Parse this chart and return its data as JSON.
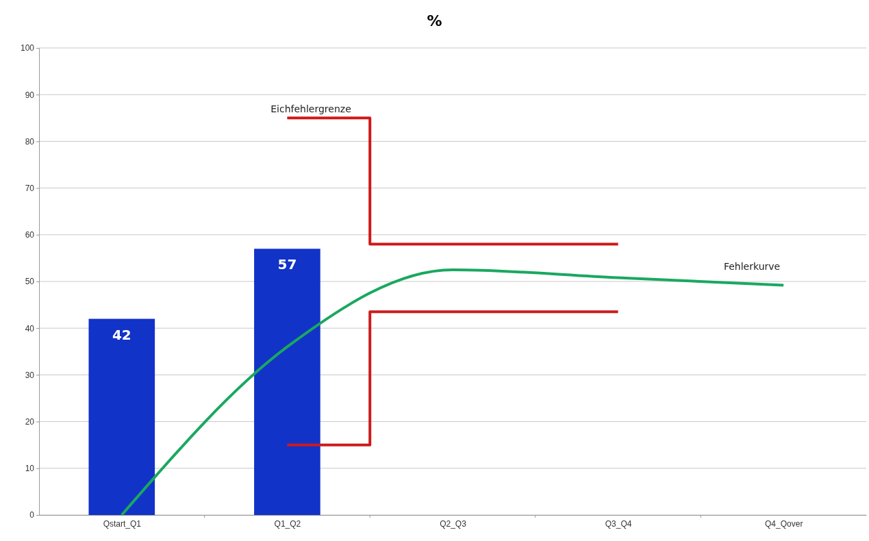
{
  "chart_data": {
    "type": "bar",
    "title": "%",
    "categories": [
      "Qstart_Q1",
      "Q1_Q2",
      "Q2_Q3",
      "Q3_Q4",
      "Q4_Qover"
    ],
    "ylim": [
      0,
      100
    ],
    "yticks": [
      0,
      10,
      20,
      30,
      40,
      50,
      60,
      70,
      80,
      90,
      100
    ],
    "grid": "y",
    "series": [
      {
        "values": [
          42,
          57,
          null,
          null,
          null
        ],
        "value_labels": [
          "42",
          "57",
          null,
          null,
          null
        ],
        "color": "#1233c8"
      },
      {
        "type": "step",
        "name": "Eichfehlergrenze",
        "values": [
          null,
          85,
          58,
          58,
          null
        ],
        "color": "#d01818"
      },
      {
        "type": "step",
        "values": [
          null,
          15,
          43.5,
          43.5,
          null
        ],
        "color": "#cc1c1c"
      },
      {
        "type": "line",
        "name": "Fehlerkurve",
        "values": [
          0,
          36,
          52.5,
          50.8,
          49.2
        ],
        "color": "#1aa860"
      }
    ]
  }
}
